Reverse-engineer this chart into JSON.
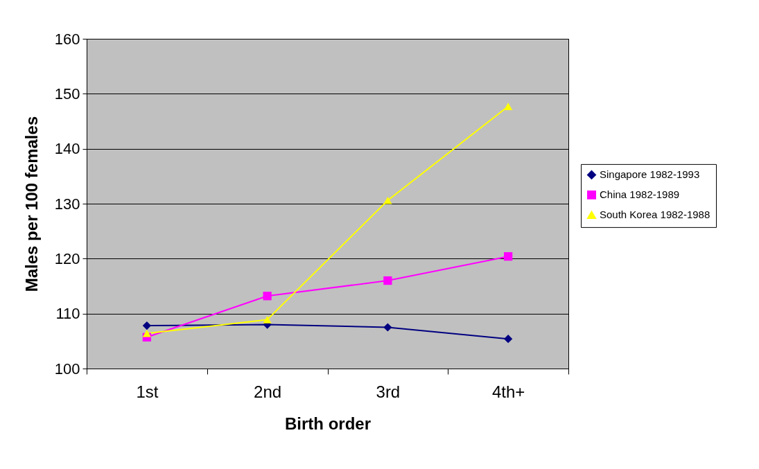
{
  "chart_data": {
    "type": "line",
    "xlabel": "Birth order",
    "ylabel": "Males per 100 females",
    "categories": [
      "1st",
      "2nd",
      "3rd",
      "4th+"
    ],
    "series": [
      {
        "name": "Singapore 1982-1993",
        "color": "#000080",
        "marker": "diamond",
        "values": [
          107.8,
          108.0,
          107.5,
          105.4
        ]
      },
      {
        "name": "China 1982-1989",
        "color": "#ff00ff",
        "marker": "square",
        "values": [
          105.7,
          113.2,
          116.0,
          120.4
        ]
      },
      {
        "name": "South Korea 1982-1988",
        "color": "#ffff00",
        "marker": "triangle",
        "values": [
          106.4,
          108.9,
          130.6,
          147.7
        ]
      }
    ],
    "ylim": [
      100,
      160
    ],
    "yticks": [
      100,
      110,
      120,
      130,
      140,
      150,
      160
    ],
    "grid": "y",
    "legend": "right",
    "line_style": "solid"
  }
}
